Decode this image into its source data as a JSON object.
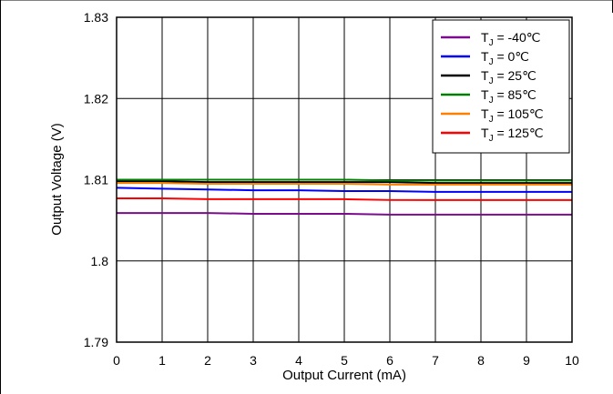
{
  "chart_data": {
    "type": "line",
    "title": "",
    "xlabel": "Output Current (mA)",
    "ylabel": "Output Voltage (V)",
    "xlim": [
      0,
      10
    ],
    "ylim": [
      1.79,
      1.83
    ],
    "x_ticks": [
      "0",
      "1",
      "2",
      "3",
      "4",
      "5",
      "6",
      "7",
      "8",
      "9",
      "10"
    ],
    "y_ticks": [
      "1.79",
      "1.8",
      "1.81",
      "1.82",
      "1.83"
    ],
    "grid": true,
    "legend_position": "top-right",
    "x": [
      0,
      1,
      2,
      3,
      4,
      5,
      6,
      7,
      8,
      9,
      10
    ],
    "series": [
      {
        "name": "T_J = -40℃",
        "label_main": "T",
        "label_sub": "J",
        "label_rest": " = -40℃",
        "color": "#7b0d8c",
        "values": [
          1.8059,
          1.8059,
          1.8059,
          1.8058,
          1.8058,
          1.8058,
          1.8057,
          1.8057,
          1.8057,
          1.8057,
          1.8057
        ]
      },
      {
        "name": "T_J = 0℃",
        "label_main": "T",
        "label_sub": "J",
        "label_rest": " = 0℃",
        "color": "#0000ff",
        "values": [
          1.809,
          1.8089,
          1.8088,
          1.8087,
          1.8087,
          1.8086,
          1.8086,
          1.8085,
          1.8085,
          1.8085,
          1.8085
        ]
      },
      {
        "name": "T_J = 25℃",
        "label_main": "T",
        "label_sub": "J",
        "label_rest": " = 25℃",
        "color": "#000000",
        "values": [
          1.8098,
          1.8098,
          1.8097,
          1.8097,
          1.8097,
          1.8097,
          1.8097,
          1.8096,
          1.8096,
          1.8096,
          1.8096
        ]
      },
      {
        "name": "T_J = 85℃",
        "label_main": "T",
        "label_sub": "J",
        "label_rest": " = 85℃",
        "color": "#008000",
        "values": [
          1.81,
          1.81,
          1.81,
          1.81,
          1.81,
          1.81,
          1.8099,
          1.8099,
          1.8099,
          1.8099,
          1.8099
        ]
      },
      {
        "name": "T_J = 105℃",
        "label_main": "T",
        "label_sub": "J",
        "label_rest": " = 105℃",
        "color": "#ff8000",
        "values": [
          1.8096,
          1.8096,
          1.8095,
          1.8095,
          1.8095,
          1.8095,
          1.8094,
          1.8094,
          1.8094,
          1.8094,
          1.8094
        ]
      },
      {
        "name": "T_J = 125℃",
        "label_main": "T",
        "label_sub": "J",
        "label_rest": " = 125℃",
        "color": "#ff0000",
        "values": [
          1.8077,
          1.8077,
          1.8076,
          1.8076,
          1.8076,
          1.8076,
          1.8075,
          1.8075,
          1.8075,
          1.8075,
          1.8075
        ]
      }
    ]
  }
}
